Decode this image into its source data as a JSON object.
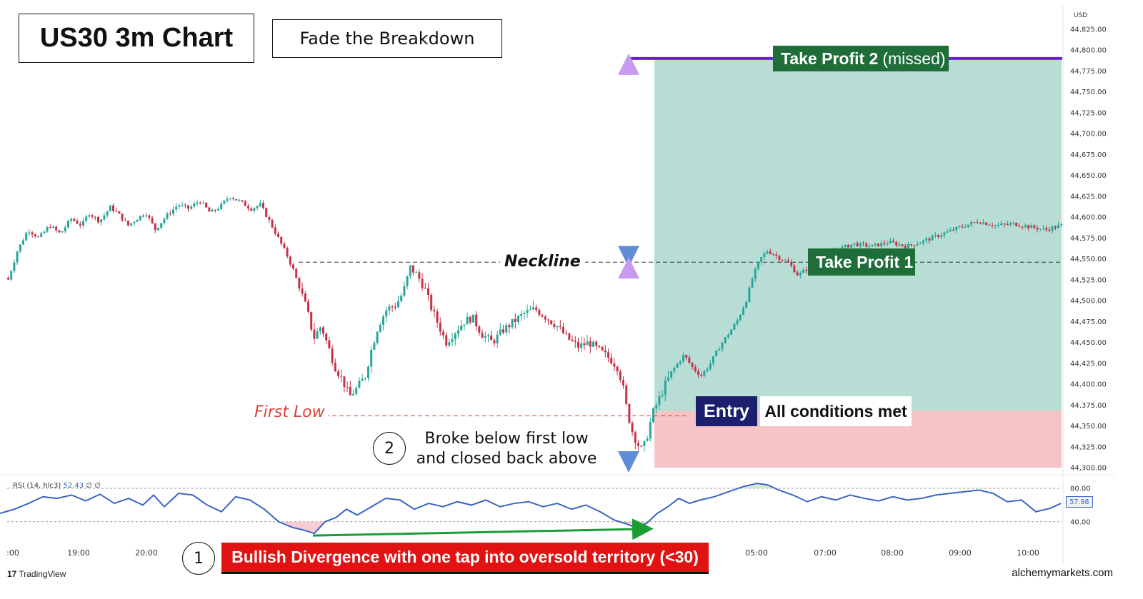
{
  "title": "US30 3m Chart",
  "subtitle": "Fade the Breakdown",
  "currency": "USD",
  "annotations": {
    "take_profit_2": "Take Profit 2",
    "take_profit_2_note": "(missed)",
    "take_profit_1": "Take Profit 1",
    "neckline": "Neckline",
    "first_low": "First Low",
    "entry": "Entry",
    "entry_note": "All conditions met",
    "step_1": "1",
    "step_2": "2",
    "step_2_line1": "Broke below first low",
    "step_2_line2": "and closed back above",
    "divergence": "Bullish Divergence with one tap into oversold territory (<30)"
  },
  "rsi": {
    "legend_name": "RSI (14, hlc3)",
    "legend_value": "52.43",
    "legend_extra": "∅ ∅",
    "current_value": "57.98",
    "levels": [
      "80.00",
      "40.00"
    ]
  },
  "branding": {
    "platform": "TradingView",
    "site": "alchemymarkets.com"
  },
  "colors": {
    "up": "#26a69a",
    "down": "#c2334a",
    "profit_zone": "#b7ddd4",
    "loss_zone": "#f6c3c6",
    "tp2_line": "#6a1fd1",
    "rsi_line": "#3b63c6",
    "divergence_arrow": "#1a9e33",
    "label_green": "#1f6e3a",
    "entry_navy": "#1b1f6e",
    "banner_red": "#e01212"
  },
  "chart_data": {
    "type": "candlestick",
    "symbol": "US30",
    "timeframe": "3m",
    "y_axis_ticks": [
      "44,825.00",
      "44,800.00",
      "44,775.00",
      "44,750.00",
      "44,725.00",
      "44,700.00",
      "44,675.00",
      "44,650.00",
      "44,625.00",
      "44,600.00",
      "44,575.00",
      "44,550.00",
      "44,525.00",
      "44,500.00",
      "44,475.00",
      "44,450.00",
      "44,425.00",
      "44,400.00",
      "44,375.00",
      "44,350.00",
      "44,325.00",
      "44,300.00"
    ],
    "ylim": [
      44300,
      44825
    ],
    "x_axis_ticks": [
      ":00",
      "19:00",
      "20:00",
      "05:00",
      "07:00",
      "08:00",
      "09:00",
      "10:00"
    ],
    "levels": {
      "take_profit_2": 44790,
      "neckline": 44546,
      "take_profit_1": 44546,
      "first_low": 44362,
      "entry": 44368
    },
    "price_path": [
      [
        0,
        44540
      ],
      [
        12,
        44525
      ],
      [
        25,
        44560
      ],
      [
        40,
        44585
      ],
      [
        55,
        44575
      ],
      [
        70,
        44590
      ],
      [
        85,
        44580
      ],
      [
        100,
        44598
      ],
      [
        115,
        44590
      ],
      [
        125,
        44605
      ],
      [
        140,
        44595
      ],
      [
        155,
        44612
      ],
      [
        165,
        44605
      ],
      [
        180,
        44590
      ],
      [
        195,
        44600
      ],
      [
        205,
        44605
      ],
      [
        218,
        44585
      ],
      [
        232,
        44600
      ],
      [
        250,
        44615
      ],
      [
        265,
        44610
      ],
      [
        280,
        44620
      ],
      [
        295,
        44605
      ],
      [
        308,
        44612
      ],
      [
        322,
        44625
      ],
      [
        338,
        44618
      ],
      [
        352,
        44610
      ],
      [
        365,
        44615
      ],
      [
        378,
        44595
      ],
      [
        390,
        44575
      ],
      [
        402,
        44555
      ],
      [
        412,
        44535
      ],
      [
        420,
        44515
      ],
      [
        430,
        44490
      ],
      [
        440,
        44455
      ],
      [
        450,
        44470
      ],
      [
        460,
        44445
      ],
      [
        470,
        44420
      ],
      [
        480,
        44405
      ],
      [
        490,
        44385
      ],
      [
        500,
        44395
      ],
      [
        512,
        44410
      ],
      [
        520,
        44440
      ],
      [
        530,
        44470
      ],
      [
        542,
        44490
      ],
      [
        555,
        44495
      ],
      [
        565,
        44510
      ],
      [
        575,
        44540
      ],
      [
        585,
        44530
      ],
      [
        595,
        44515
      ],
      [
        605,
        44490
      ],
      [
        615,
        44470
      ],
      [
        625,
        44450
      ],
      [
        635,
        44460
      ],
      [
        650,
        44475
      ],
      [
        662,
        44480
      ],
      [
        675,
        44460
      ],
      [
        690,
        44450
      ],
      [
        705,
        44465
      ],
      [
        720,
        44475
      ],
      [
        735,
        44485
      ],
      [
        750,
        44490
      ],
      [
        765,
        44480
      ],
      [
        780,
        44470
      ],
      [
        795,
        44455
      ],
      [
        810,
        44445
      ],
      [
        825,
        44450
      ],
      [
        840,
        44440
      ],
      [
        855,
        44430
      ],
      [
        865,
        44420
      ],
      [
        872,
        44400
      ],
      [
        878,
        44370
      ],
      [
        885,
        44345
      ],
      [
        892,
        44330
      ],
      [
        900,
        44320
      ],
      [
        907,
        44340
      ],
      [
        914,
        44365
      ],
      [
        922,
        44380
      ],
      [
        932,
        44400
      ],
      [
        945,
        44420
      ],
      [
        958,
        44435
      ],
      [
        970,
        44420
      ],
      [
        982,
        44410
      ],
      [
        995,
        44425
      ],
      [
        1008,
        44445
      ],
      [
        1020,
        44460
      ],
      [
        1032,
        44475
      ],
      [
        1045,
        44500
      ],
      [
        1055,
        44530
      ],
      [
        1065,
        44550
      ],
      [
        1075,
        44560
      ],
      [
        1090,
        44552
      ],
      [
        1105,
        44545
      ],
      [
        1118,
        44530
      ],
      [
        1132,
        44540
      ],
      [
        1150,
        44555
      ],
      [
        1170,
        44560
      ],
      [
        1195,
        44568
      ],
      [
        1220,
        44565
      ],
      [
        1245,
        44570
      ],
      [
        1270,
        44565
      ],
      [
        1295,
        44572
      ],
      [
        1320,
        44580
      ],
      [
        1345,
        44588
      ],
      [
        1370,
        44595
      ],
      [
        1395,
        44590
      ],
      [
        1420,
        44592
      ],
      [
        1445,
        44588
      ],
      [
        1465,
        44585
      ],
      [
        1485,
        44590
      ]
    ],
    "rsi_series": {
      "ylim": [
        15,
        92
      ],
      "points": [
        [
          0,
          50
        ],
        [
          20,
          55
        ],
        [
          40,
          62
        ],
        [
          60,
          70
        ],
        [
          80,
          68
        ],
        [
          100,
          72
        ],
        [
          120,
          65
        ],
        [
          140,
          73
        ],
        [
          160,
          62
        ],
        [
          180,
          68
        ],
        [
          200,
          60
        ],
        [
          215,
          72
        ],
        [
          230,
          58
        ],
        [
          250,
          74
        ],
        [
          270,
          72
        ],
        [
          290,
          60
        ],
        [
          310,
          52
        ],
        [
          330,
          70
        ],
        [
          350,
          66
        ],
        [
          370,
          55
        ],
        [
          390,
          40
        ],
        [
          410,
          33
        ],
        [
          425,
          30
        ],
        [
          440,
          26
        ],
        [
          455,
          40
        ],
        [
          470,
          45
        ],
        [
          485,
          55
        ],
        [
          500,
          48
        ],
        [
          520,
          58
        ],
        [
          540,
          68
        ],
        [
          560,
          66
        ],
        [
          580,
          55
        ],
        [
          600,
          62
        ],
        [
          620,
          58
        ],
        [
          640,
          64
        ],
        [
          660,
          60
        ],
        [
          680,
          66
        ],
        [
          700,
          58
        ],
        [
          720,
          62
        ],
        [
          740,
          64
        ],
        [
          760,
          58
        ],
        [
          780,
          62
        ],
        [
          800,
          55
        ],
        [
          820,
          60
        ],
        [
          840,
          52
        ],
        [
          860,
          42
        ],
        [
          875,
          38
        ],
        [
          890,
          33
        ],
        [
          905,
          38
        ],
        [
          920,
          50
        ],
        [
          935,
          58
        ],
        [
          950,
          68
        ],
        [
          965,
          62
        ],
        [
          980,
          66
        ],
        [
          1000,
          70
        ],
        [
          1020,
          76
        ],
        [
          1040,
          82
        ],
        [
          1060,
          86
        ],
        [
          1075,
          84
        ],
        [
          1090,
          78
        ],
        [
          1110,
          72
        ],
        [
          1130,
          64
        ],
        [
          1150,
          70
        ],
        [
          1170,
          66
        ],
        [
          1190,
          72
        ],
        [
          1210,
          68
        ],
        [
          1230,
          65
        ],
        [
          1250,
          70
        ],
        [
          1270,
          66
        ],
        [
          1290,
          68
        ],
        [
          1310,
          72
        ],
        [
          1330,
          74
        ],
        [
          1350,
          76
        ],
        [
          1370,
          78
        ],
        [
          1390,
          74
        ],
        [
          1410,
          64
        ],
        [
          1430,
          66
        ],
        [
          1450,
          52
        ],
        [
          1470,
          56
        ],
        [
          1485,
          62
        ]
      ]
    }
  }
}
